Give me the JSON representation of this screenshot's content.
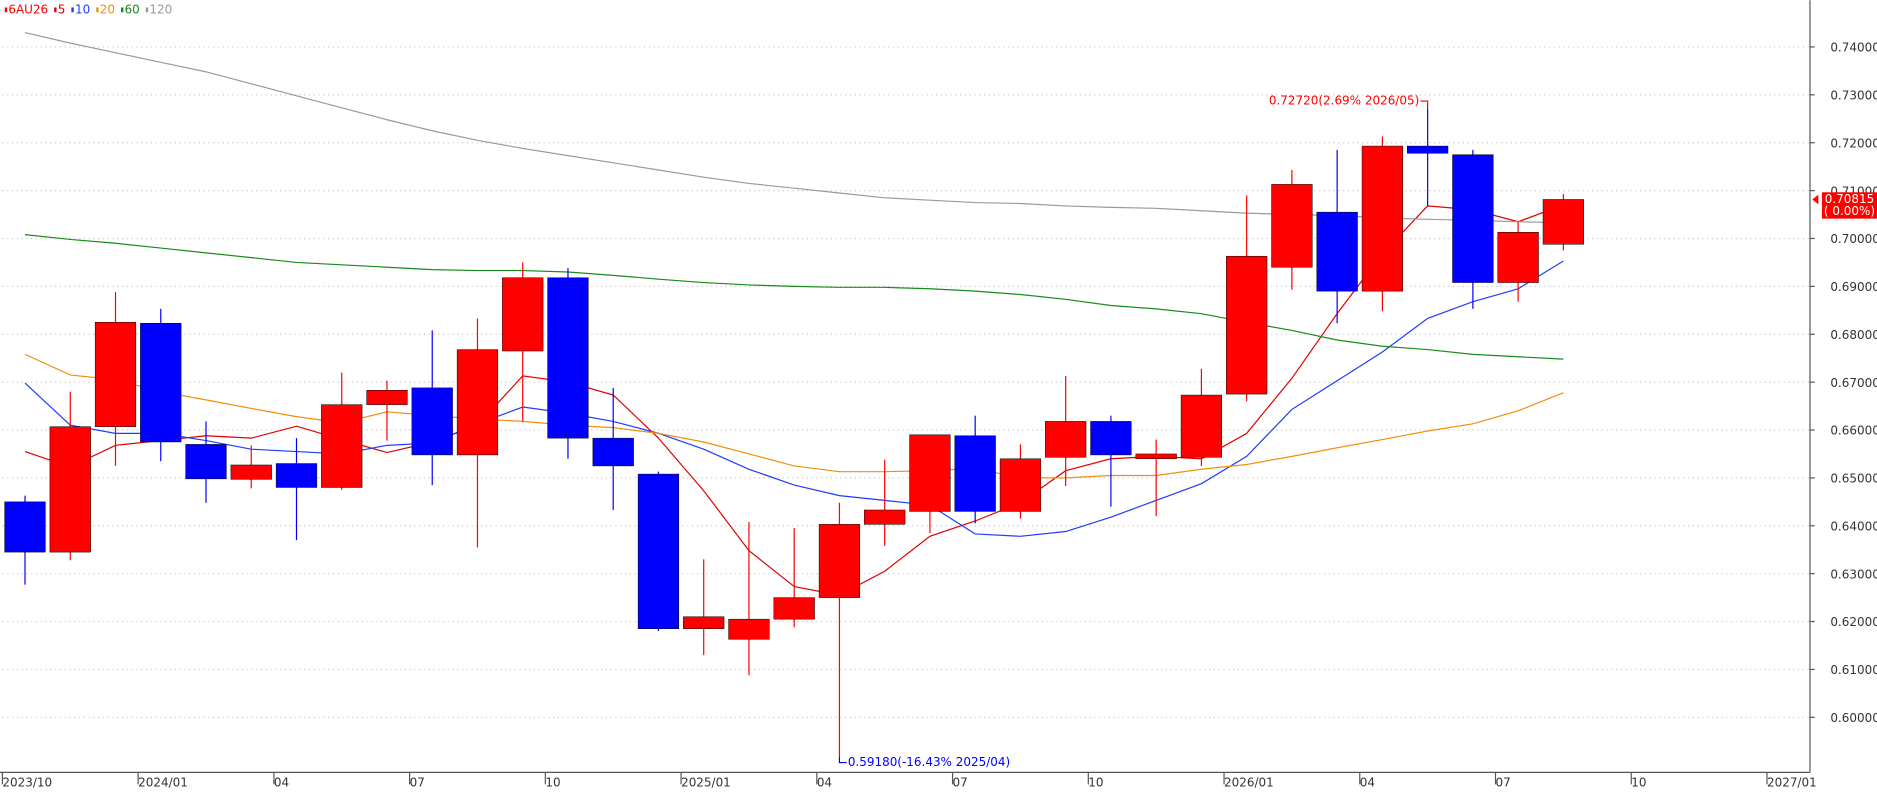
{
  "chart_data": {
    "type": "candlestick",
    "name": "6AU26",
    "up_color": "#ff0000",
    "down_color": "#0000ff",
    "open": [
      0.645,
      0.6345,
      0.6607,
      0.6823,
      0.657,
      0.6497,
      0.653,
      0.648,
      0.6653,
      0.6688,
      0.6548,
      0.6765,
      0.6918,
      0.6583,
      0.6508,
      0.6185,
      0.6163,
      0.6205,
      0.625,
      0.6403,
      0.643,
      0.6588,
      0.643,
      0.6543,
      0.6618,
      0.654,
      0.6543,
      0.6675,
      0.694,
      0.7055,
      0.689,
      0.7193,
      0.7175,
      0.6908,
      0.6988
    ],
    "high": [
      0.6463,
      0.668,
      0.6888,
      0.6853,
      0.6618,
      0.6568,
      0.6583,
      0.672,
      0.6703,
      0.6808,
      0.6833,
      0.695,
      0.6938,
      0.6688,
      0.6513,
      0.633,
      0.6408,
      0.6395,
      0.6448,
      0.6538,
      0.659,
      0.663,
      0.657,
      0.6713,
      0.663,
      0.658,
      0.6728,
      0.709,
      0.7143,
      0.7185,
      0.7213,
      0.7272,
      0.7185,
      0.7035,
      0.7093
    ],
    "low": [
      0.6277,
      0.6328,
      0.6525,
      0.6535,
      0.6448,
      0.6478,
      0.637,
      0.6475,
      0.6578,
      0.6485,
      0.6355,
      0.6618,
      0.654,
      0.6433,
      0.618,
      0.613,
      0.6088,
      0.6188,
      0.5918,
      0.6358,
      0.6385,
      0.6405,
      0.6415,
      0.6483,
      0.644,
      0.642,
      0.6525,
      0.666,
      0.6893,
      0.6823,
      0.6848,
      0.7068,
      0.6853,
      0.6868,
      0.6975
    ],
    "close": [
      0.6345,
      0.6607,
      0.6825,
      0.6575,
      0.6498,
      0.6527,
      0.648,
      0.6653,
      0.6683,
      0.6548,
      0.6768,
      0.6918,
      0.6583,
      0.6525,
      0.6185,
      0.621,
      0.6205,
      0.625,
      0.6403,
      0.6433,
      0.659,
      0.643,
      0.654,
      0.6618,
      0.6548,
      0.655,
      0.6673,
      0.6963,
      0.7113,
      0.689,
      0.7193,
      0.7178,
      0.6908,
      0.7013,
      0.70815
    ],
    "lines": [
      {
        "name": "5",
        "color": "#e00000",
        "values": [
          0.6555,
          0.6523,
          0.6568,
          0.6578,
          0.6588,
          0.6583,
          0.6608,
          0.658,
          0.6553,
          0.6575,
          0.661,
          0.6713,
          0.67,
          0.6673,
          0.6583,
          0.6473,
          0.6348,
          0.6273,
          0.6255,
          0.6305,
          0.6378,
          0.641,
          0.6448,
          0.6515,
          0.654,
          0.6545,
          0.654,
          0.6593,
          0.6708,
          0.6843,
          0.6968,
          0.7068,
          0.706,
          0.7035,
          0.707
        ]
      },
      {
        "name": "10",
        "color": "#1e3cff",
        "values": [
          0.6698,
          0.661,
          0.6593,
          0.6593,
          0.6578,
          0.656,
          0.6555,
          0.655,
          0.6568,
          0.6573,
          0.6613,
          0.6648,
          0.6635,
          0.6618,
          0.6593,
          0.656,
          0.6518,
          0.6485,
          0.6463,
          0.6453,
          0.6443,
          0.6383,
          0.6378,
          0.6388,
          0.6418,
          0.6453,
          0.6488,
          0.6545,
          0.6643,
          0.6703,
          0.6763,
          0.6833,
          0.6868,
          0.6895,
          0.6953
        ]
      },
      {
        "name": "20",
        "color": "#f0900a",
        "values": [
          0.6758,
          0.6715,
          0.6705,
          0.668,
          0.6663,
          0.6645,
          0.6628,
          0.6615,
          0.6638,
          0.663,
          0.6623,
          0.6618,
          0.661,
          0.6605,
          0.6593,
          0.6575,
          0.655,
          0.6525,
          0.6513,
          0.6513,
          0.6515,
          0.652,
          0.65,
          0.65,
          0.6505,
          0.6505,
          0.6518,
          0.6528,
          0.6545,
          0.6563,
          0.658,
          0.6598,
          0.6613,
          0.664,
          0.6678
        ]
      },
      {
        "name": "60",
        "color": "#1a8a1a",
        "values": [
          0.7008,
          0.6998,
          0.699,
          0.698,
          0.697,
          0.696,
          0.695,
          0.6945,
          0.694,
          0.6935,
          0.6933,
          0.6933,
          0.693,
          0.6923,
          0.6915,
          0.6908,
          0.6903,
          0.69,
          0.6898,
          0.6898,
          0.6895,
          0.689,
          0.6883,
          0.6873,
          0.686,
          0.6853,
          0.6843,
          0.6825,
          0.6808,
          0.6788,
          0.6775,
          0.6768,
          0.6758,
          0.6753,
          0.6748
        ]
      },
      {
        "name": "120",
        "color": "#9a9a9a",
        "values": [
          0.743,
          0.7408,
          0.7388,
          0.7368,
          0.7348,
          0.7323,
          0.7298,
          0.7273,
          0.7248,
          0.7225,
          0.7205,
          0.7188,
          0.7173,
          0.7158,
          0.7143,
          0.7128,
          0.7115,
          0.7105,
          0.7095,
          0.7085,
          0.708,
          0.7075,
          0.7073,
          0.7068,
          0.7065,
          0.7063,
          0.7058,
          0.7053,
          0.705,
          0.7048,
          0.7043,
          0.704,
          0.7038,
          0.7035,
          0.7033
        ]
      }
    ],
    "xlim": [
      0,
      39.95
    ],
    "xticks": [
      {
        "value": 0,
        "label": "2023/10"
      },
      {
        "value": 3,
        "label": "2024/01"
      },
      {
        "value": 6,
        "label": "04"
      },
      {
        "value": 9,
        "label": "07"
      },
      {
        "value": 12,
        "label": "10"
      },
      {
        "value": 15,
        "label": "2025/01"
      },
      {
        "value": 18,
        "label": "04"
      },
      {
        "value": 21,
        "label": "07"
      },
      {
        "value": 24,
        "label": "10"
      },
      {
        "value": 27,
        "label": "2026/01"
      },
      {
        "value": 30,
        "label": "04"
      },
      {
        "value": 33,
        "label": "07"
      },
      {
        "value": 36,
        "label": "10"
      },
      {
        "value": 39,
        "label": "2027/01"
      }
    ],
    "ylim": [
      0.5885,
      0.74975
    ],
    "yticks": [
      {
        "value": 0.6,
        "label": "0.60000"
      },
      {
        "value": 0.61,
        "label": "0.61000"
      },
      {
        "value": 0.62,
        "label": "0.62000"
      },
      {
        "value": 0.63,
        "label": "0.63000"
      },
      {
        "value": 0.64,
        "label": "0.64000"
      },
      {
        "value": 0.65,
        "label": "0.65000"
      },
      {
        "value": 0.66,
        "label": "0.66000"
      },
      {
        "value": 0.67,
        "label": "0.67000"
      },
      {
        "value": 0.68,
        "label": "0.68000"
      },
      {
        "value": 0.69,
        "label": "0.69000"
      },
      {
        "value": 0.7,
        "label": "0.70000"
      },
      {
        "value": 0.71,
        "label": "0.71000"
      },
      {
        "value": 0.72,
        "label": "0.72000"
      },
      {
        "value": 0.73,
        "label": "0.73000"
      },
      {
        "value": 0.74,
        "label": "0.74000"
      }
    ],
    "grid": true,
    "high_annotation": "0.72720(2.69% 2026/05)",
    "low_annotation": "0.59180(-16.43% 2025/04)",
    "last_price_label": "0.70815",
    "last_change_label": "( 0.00%)"
  }
}
